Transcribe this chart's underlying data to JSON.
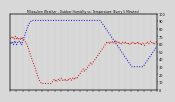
{
  "title": "Milwaukee Weather - Outdoor Humidity vs. Temperature (Every 5 Minutes)",
  "background_color": "#d8d8d8",
  "plot_bg": "#d8d8d8",
  "blue_color": "#0000cc",
  "red_color": "#cc0000",
  "ylabel_right_ticks": [
    0,
    10,
    20,
    30,
    40,
    50,
    60,
    70,
    80,
    90,
    100
  ],
  "grid_color": "#aaaaaa",
  "linewidth": 0.7,
  "humidity_values": [
    62,
    61,
    60,
    61,
    62,
    63,
    60,
    59,
    61,
    63,
    64,
    62,
    60,
    59,
    61,
    62,
    63,
    64,
    63,
    62,
    61,
    62,
    60,
    59,
    62,
    64,
    66,
    68,
    70,
    72,
    74,
    76,
    78,
    80,
    82,
    84,
    86,
    87,
    88,
    89,
    89,
    90,
    90,
    91,
    91,
    91,
    91,
    91,
    91,
    91,
    91,
    91,
    91,
    91,
    91,
    91,
    91,
    91,
    91,
    91,
    91,
    91,
    91,
    91,
    91,
    91,
    91,
    91,
    91,
    91,
    91,
    91,
    91,
    91,
    91,
    91,
    91,
    91,
    91,
    91,
    91,
    91,
    91,
    91,
    91,
    91,
    91,
    91,
    91,
    91,
    91,
    91,
    91,
    91,
    91,
    91,
    91,
    91,
    91,
    91,
    91,
    91,
    91,
    91,
    91,
    91,
    91,
    91,
    91,
    91,
    91,
    91,
    91,
    91,
    91,
    91,
    91,
    91,
    91,
    91,
    91,
    91,
    91,
    91,
    91,
    91,
    91,
    91,
    91,
    91,
    91,
    91,
    91,
    91,
    91,
    91,
    91,
    91,
    91,
    91,
    91,
    91,
    91,
    91,
    91,
    91,
    91,
    91,
    91,
    91,
    91,
    91,
    91,
    91,
    91,
    91,
    91,
    91,
    91,
    91,
    91,
    91,
    91,
    91,
    91,
    91,
    91,
    91,
    91,
    91,
    91,
    91,
    91,
    91,
    91,
    91,
    90,
    89,
    88,
    87,
    86,
    85,
    84,
    83,
    82,
    81,
    80,
    79,
    78,
    77,
    76,
    75,
    74,
    73,
    72,
    71,
    70,
    69,
    68,
    67,
    66,
    65,
    64,
    63,
    62,
    61,
    60,
    59,
    58,
    57,
    56,
    55,
    54,
    53,
    52,
    51,
    50,
    49,
    48,
    47,
    46,
    45,
    44,
    43,
    42,
    41,
    40,
    39,
    38,
    37,
    36,
    35,
    34,
    33,
    32,
    31,
    30,
    30,
    30,
    30,
    30,
    30,
    30,
    30,
    30,
    30,
    30,
    30,
    30,
    30,
    30,
    30,
    30,
    30,
    30,
    30,
    30,
    30,
    30,
    31,
    32,
    33,
    34,
    35,
    36,
    37,
    38,
    39,
    40,
    41,
    42,
    43,
    44,
    45,
    46,
    47,
    48,
    49,
    50,
    51,
    52,
    53,
    54,
    55,
    56,
    57
  ],
  "temp_values": [
    68,
    67,
    67,
    68,
    69,
    70,
    68,
    67,
    66,
    68,
    70,
    69,
    67,
    66,
    68,
    67,
    66,
    67,
    68,
    67,
    66,
    68,
    67,
    66,
    68,
    67,
    66,
    65,
    64,
    63,
    62,
    61,
    60,
    58,
    56,
    54,
    52,
    50,
    48,
    46,
    44,
    42,
    40,
    38,
    36,
    34,
    32,
    30,
    28,
    26,
    24,
    22,
    20,
    18,
    16,
    14,
    12,
    11,
    10,
    9,
    8,
    8,
    8,
    8,
    8,
    8,
    8,
    8,
    8,
    8,
    8,
    8,
    8,
    8,
    8,
    8,
    8,
    8,
    8,
    8,
    9,
    10,
    11,
    12,
    13,
    12,
    11,
    12,
    13,
    12,
    11,
    12,
    13,
    14,
    13,
    12,
    13,
    14,
    15,
    14,
    13,
    12,
    11,
    12,
    13,
    14,
    13,
    12,
    13,
    12,
    11,
    12,
    13,
    14,
    15,
    14,
    13,
    12,
    13,
    14,
    15,
    14,
    13,
    14,
    15,
    16,
    15,
    14,
    15,
    16,
    17,
    18,
    19,
    20,
    21,
    22,
    23,
    24,
    25,
    26,
    27,
    26,
    25,
    24,
    25,
    26,
    27,
    28,
    29,
    30,
    31,
    32,
    33,
    34,
    35,
    34,
    33,
    34,
    35,
    36,
    37,
    38,
    39,
    40,
    41,
    42,
    43,
    44,
    45,
    46,
    47,
    48,
    49,
    50,
    51,
    52,
    53,
    54,
    55,
    56,
    57,
    58,
    59,
    60,
    61,
    62,
    63,
    62,
    61,
    60,
    61,
    62,
    63,
    62,
    61,
    62,
    63,
    62,
    61,
    62,
    63,
    64,
    63,
    62,
    63,
    62,
    61,
    62,
    63,
    62,
    61,
    62,
    61,
    60,
    61,
    62,
    63,
    62,
    61,
    62,
    63,
    62,
    61,
    60,
    61,
    62,
    61,
    60,
    61,
    60,
    59,
    60,
    61,
    62,
    63,
    62,
    61,
    60,
    61,
    62,
    61,
    60,
    61,
    62,
    61,
    60,
    61,
    62,
    61,
    60,
    61,
    60,
    59,
    60,
    61,
    60,
    59,
    58,
    59,
    60,
    61,
    62,
    63,
    62,
    61,
    60,
    61,
    62,
    63,
    64,
    63,
    62,
    61,
    60,
    61,
    62,
    61,
    60,
    61,
    62,
    63,
    64
  ]
}
